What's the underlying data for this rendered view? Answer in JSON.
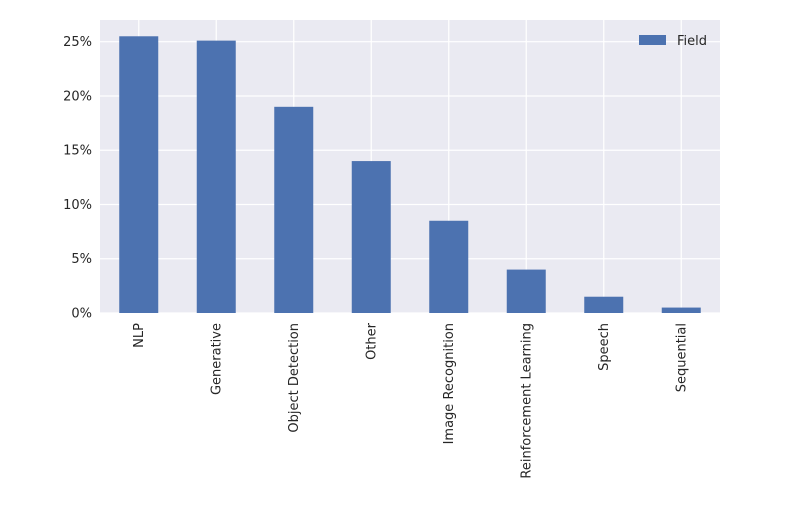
{
  "chart_data": {
    "type": "bar",
    "categories": [
      "NLP",
      "Generative",
      "Object Detection",
      "Other",
      "Image Recognition",
      "Reinforcement Learning",
      "Speech",
      "Sequential"
    ],
    "series": [
      {
        "name": "Field",
        "values": [
          25.5,
          25.1,
          19.0,
          14.0,
          8.5,
          4.0,
          1.5,
          0.5
        ],
        "color": "#4C72B0"
      }
    ],
    "title": "",
    "xlabel": "",
    "ylabel": "",
    "ylim": [
      0,
      27
    ],
    "yticks": [
      "0%",
      "5%",
      "10%",
      "15%",
      "20%",
      "25%"
    ],
    "ytick_values": [
      0,
      5,
      10,
      15,
      20,
      25
    ],
    "grid": true,
    "legend_position": "top-right",
    "background_color": "#EAEAF2",
    "grid_color": "#FFFFFF"
  }
}
